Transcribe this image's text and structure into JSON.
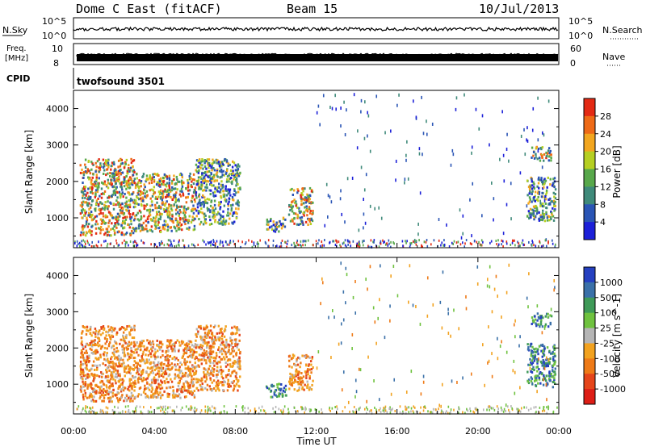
{
  "header": {
    "title": "Dome C East (fitACF)",
    "beam": "Beam 15",
    "date": "10/Jul/2013"
  },
  "top_panels": {
    "nsky_label": "N.Sky",
    "nsky_ticks": [
      "10^5",
      "10^0"
    ],
    "nsearch_label": "N.Search",
    "nsearch_ticks": [
      "10^5",
      "10^0"
    ],
    "freq_label_1": "Freq.",
    "freq_label_2": "[MHz]",
    "freq_ticks": [
      "10",
      "8"
    ],
    "nave_label": "Nave",
    "nave_ticks": [
      "60",
      "0"
    ],
    "cpid_label": "CPID",
    "cpid_value": "twofsound 3501"
  },
  "chart_data": [
    {
      "type": "heatmap",
      "quantity": "Power",
      "ylabel": "Slant Range [km]",
      "ylim": [
        180,
        4500
      ],
      "yticks": [
        1000,
        2000,
        3000,
        4000
      ],
      "colorbar_label": "Power [dB]",
      "colorbar_ticks": [
        "4",
        "8",
        "12",
        "16",
        "20",
        "24",
        "28"
      ],
      "colors": [
        "#1c20d8",
        "#2a55b5",
        "#3f8a7a",
        "#58a84b",
        "#b6cf22",
        "#f2a61f",
        "#ee6a17",
        "#e32a14"
      ],
      "regions": [
        {
          "t0": 0.3,
          "t1": 3.0,
          "r0": 500,
          "r1": 2600,
          "level": "high"
        },
        {
          "t0": 3.0,
          "t1": 6.0,
          "r0": 600,
          "r1": 2200,
          "level": "high"
        },
        {
          "t0": 6.0,
          "t1": 8.2,
          "r0": 800,
          "r1": 2600,
          "level": "mid"
        },
        {
          "t0": 9.5,
          "t1": 10.5,
          "r0": 600,
          "r1": 1000,
          "level": "mid"
        },
        {
          "t0": 10.6,
          "t1": 11.8,
          "r0": 800,
          "r1": 1800,
          "level": "high"
        },
        {
          "t0": 22.4,
          "t1": 23.8,
          "r0": 900,
          "r1": 2100,
          "level": "mid"
        },
        {
          "t0": 22.6,
          "t1": 23.6,
          "r0": 2550,
          "r1": 2950,
          "level": "high"
        }
      ]
    },
    {
      "type": "heatmap",
      "quantity": "Velocity",
      "xlabel": "Time UT",
      "xticks": [
        "00:00",
        "04:00",
        "08:00",
        "12:00",
        "16:00",
        "20:00",
        "00:00"
      ],
      "xlim": [
        0,
        24
      ],
      "ylabel": "Slant Range [km]",
      "ylim": [
        180,
        4500
      ],
      "yticks": [
        1000,
        2000,
        3000,
        4000
      ],
      "colorbar_label": "Velocity [m s^-1]",
      "colorbar_ticks": [
        "1000",
        "500",
        "100",
        "25",
        "-25",
        "-100",
        "-500",
        "-1000"
      ],
      "colors": [
        "#2540c0",
        "#3a70a8",
        "#3f9a58",
        "#6fc23f",
        "#b5b5b5",
        "#f2a21f",
        "#ee7a17",
        "#e5451a",
        "#dd1e16"
      ],
      "regions": [
        {
          "t0": 0.3,
          "t1": 3.0,
          "r0": 500,
          "r1": 2600,
          "level": "neg"
        },
        {
          "t0": 3.0,
          "t1": 6.0,
          "r0": 600,
          "r1": 2200,
          "level": "neg"
        },
        {
          "t0": 6.0,
          "t1": 8.2,
          "r0": 800,
          "r1": 2600,
          "level": "neg"
        },
        {
          "t0": 9.5,
          "t1": 10.5,
          "r0": 600,
          "r1": 1000,
          "level": "pos"
        },
        {
          "t0": 10.6,
          "t1": 11.8,
          "r0": 800,
          "r1": 1800,
          "level": "neg"
        },
        {
          "t0": 22.4,
          "t1": 23.8,
          "r0": 900,
          "r1": 2100,
          "level": "pos"
        },
        {
          "t0": 22.6,
          "t1": 23.6,
          "r0": 2550,
          "r1": 2950,
          "level": "pos"
        }
      ]
    }
  ]
}
